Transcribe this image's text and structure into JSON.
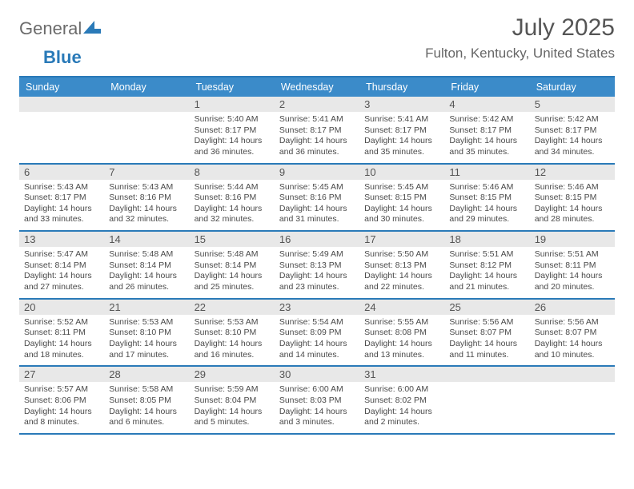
{
  "logo": {
    "text1": "General",
    "text2": "Blue"
  },
  "title": "July 2025",
  "location": "Fulton, Kentucky, United States",
  "colors": {
    "brand_blue": "#2a7ab8",
    "header_blue": "#3b8bc9",
    "daynum_bg": "#e8e8e8",
    "text_gray": "#555555",
    "body_text": "#4a4a4a"
  },
  "weekdays": [
    "Sunday",
    "Monday",
    "Tuesday",
    "Wednesday",
    "Thursday",
    "Friday",
    "Saturday"
  ],
  "weeks": [
    [
      null,
      null,
      {
        "n": "1",
        "sr": "5:40 AM",
        "ss": "8:17 PM",
        "dl": "14 hours and 36 minutes."
      },
      {
        "n": "2",
        "sr": "5:41 AM",
        "ss": "8:17 PM",
        "dl": "14 hours and 36 minutes."
      },
      {
        "n": "3",
        "sr": "5:41 AM",
        "ss": "8:17 PM",
        "dl": "14 hours and 35 minutes."
      },
      {
        "n": "4",
        "sr": "5:42 AM",
        "ss": "8:17 PM",
        "dl": "14 hours and 35 minutes."
      },
      {
        "n": "5",
        "sr": "5:42 AM",
        "ss": "8:17 PM",
        "dl": "14 hours and 34 minutes."
      }
    ],
    [
      {
        "n": "6",
        "sr": "5:43 AM",
        "ss": "8:17 PM",
        "dl": "14 hours and 33 minutes."
      },
      {
        "n": "7",
        "sr": "5:43 AM",
        "ss": "8:16 PM",
        "dl": "14 hours and 32 minutes."
      },
      {
        "n": "8",
        "sr": "5:44 AM",
        "ss": "8:16 PM",
        "dl": "14 hours and 32 minutes."
      },
      {
        "n": "9",
        "sr": "5:45 AM",
        "ss": "8:16 PM",
        "dl": "14 hours and 31 minutes."
      },
      {
        "n": "10",
        "sr": "5:45 AM",
        "ss": "8:15 PM",
        "dl": "14 hours and 30 minutes."
      },
      {
        "n": "11",
        "sr": "5:46 AM",
        "ss": "8:15 PM",
        "dl": "14 hours and 29 minutes."
      },
      {
        "n": "12",
        "sr": "5:46 AM",
        "ss": "8:15 PM",
        "dl": "14 hours and 28 minutes."
      }
    ],
    [
      {
        "n": "13",
        "sr": "5:47 AM",
        "ss": "8:14 PM",
        "dl": "14 hours and 27 minutes."
      },
      {
        "n": "14",
        "sr": "5:48 AM",
        "ss": "8:14 PM",
        "dl": "14 hours and 26 minutes."
      },
      {
        "n": "15",
        "sr": "5:48 AM",
        "ss": "8:14 PM",
        "dl": "14 hours and 25 minutes."
      },
      {
        "n": "16",
        "sr": "5:49 AM",
        "ss": "8:13 PM",
        "dl": "14 hours and 23 minutes."
      },
      {
        "n": "17",
        "sr": "5:50 AM",
        "ss": "8:13 PM",
        "dl": "14 hours and 22 minutes."
      },
      {
        "n": "18",
        "sr": "5:51 AM",
        "ss": "8:12 PM",
        "dl": "14 hours and 21 minutes."
      },
      {
        "n": "19",
        "sr": "5:51 AM",
        "ss": "8:11 PM",
        "dl": "14 hours and 20 minutes."
      }
    ],
    [
      {
        "n": "20",
        "sr": "5:52 AM",
        "ss": "8:11 PM",
        "dl": "14 hours and 18 minutes."
      },
      {
        "n": "21",
        "sr": "5:53 AM",
        "ss": "8:10 PM",
        "dl": "14 hours and 17 minutes."
      },
      {
        "n": "22",
        "sr": "5:53 AM",
        "ss": "8:10 PM",
        "dl": "14 hours and 16 minutes."
      },
      {
        "n": "23",
        "sr": "5:54 AM",
        "ss": "8:09 PM",
        "dl": "14 hours and 14 minutes."
      },
      {
        "n": "24",
        "sr": "5:55 AM",
        "ss": "8:08 PM",
        "dl": "14 hours and 13 minutes."
      },
      {
        "n": "25",
        "sr": "5:56 AM",
        "ss": "8:07 PM",
        "dl": "14 hours and 11 minutes."
      },
      {
        "n": "26",
        "sr": "5:56 AM",
        "ss": "8:07 PM",
        "dl": "14 hours and 10 minutes."
      }
    ],
    [
      {
        "n": "27",
        "sr": "5:57 AM",
        "ss": "8:06 PM",
        "dl": "14 hours and 8 minutes."
      },
      {
        "n": "28",
        "sr": "5:58 AM",
        "ss": "8:05 PM",
        "dl": "14 hours and 6 minutes."
      },
      {
        "n": "29",
        "sr": "5:59 AM",
        "ss": "8:04 PM",
        "dl": "14 hours and 5 minutes."
      },
      {
        "n": "30",
        "sr": "6:00 AM",
        "ss": "8:03 PM",
        "dl": "14 hours and 3 minutes."
      },
      {
        "n": "31",
        "sr": "6:00 AM",
        "ss": "8:02 PM",
        "dl": "14 hours and 2 minutes."
      },
      null,
      null
    ]
  ],
  "labels": {
    "sunrise": "Sunrise: ",
    "sunset": "Sunset: ",
    "daylight": "Daylight: "
  }
}
